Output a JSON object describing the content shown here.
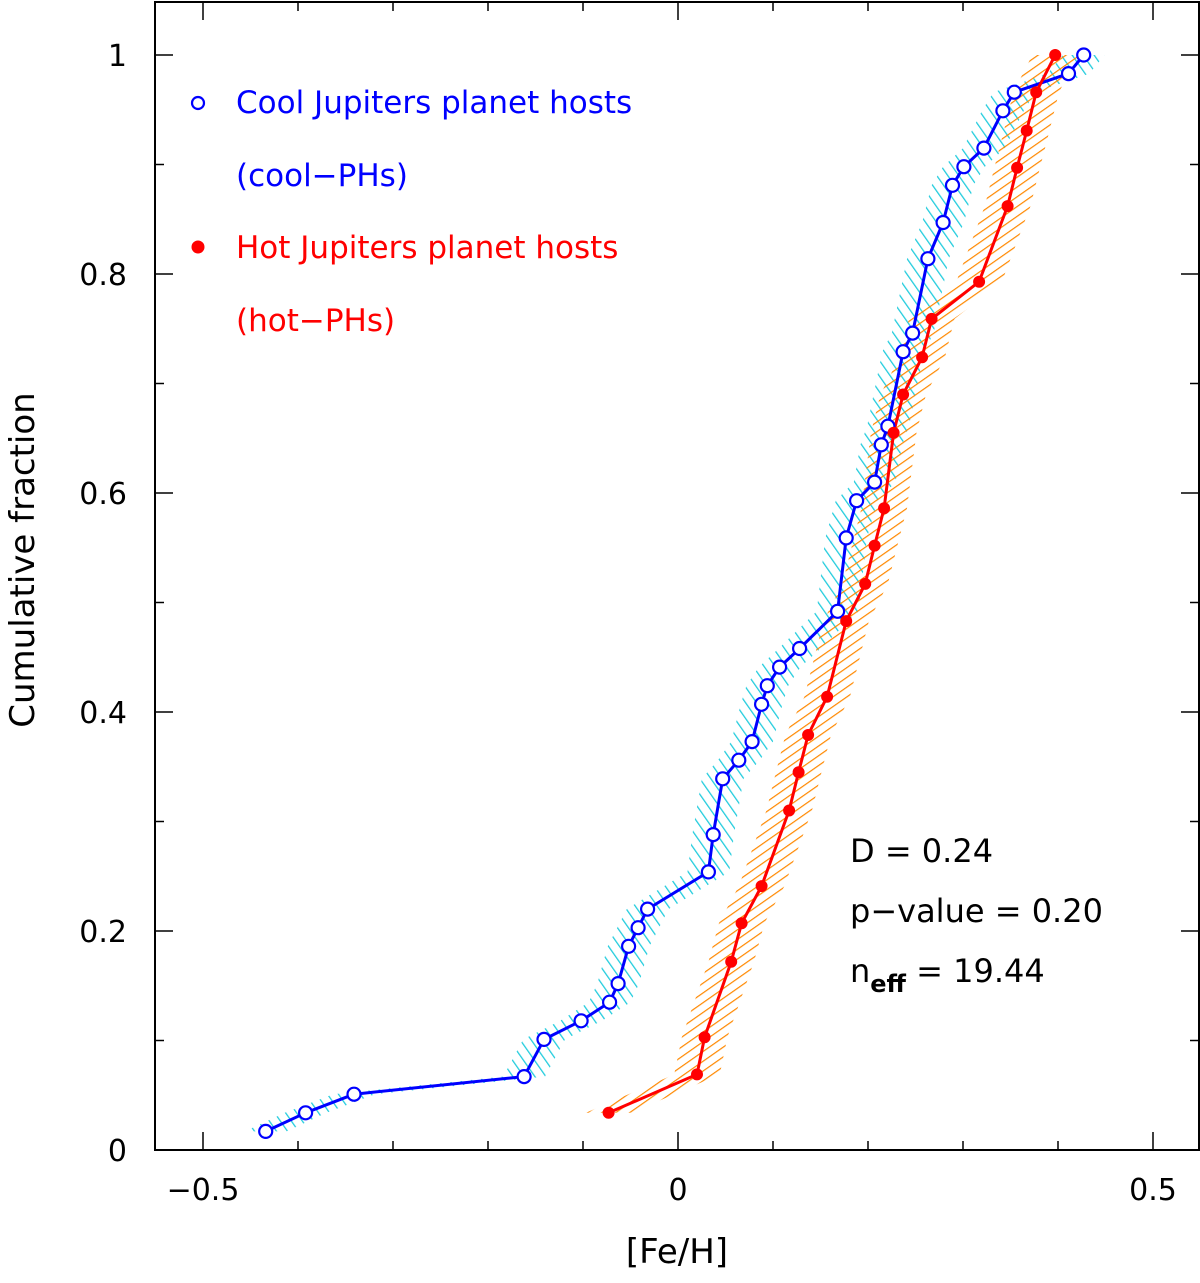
{
  "chart_data": {
    "type": "line",
    "title": "",
    "xlabel": "[Fe/H]",
    "ylabel": "Cumulative fraction",
    "xlim": [
      -0.55,
      0.55
    ],
    "ylim": [
      0,
      1.05
    ],
    "xticks": [
      -0.5,
      0,
      0.5
    ],
    "xtick_labels": [
      "−0.5",
      "0",
      "0.5"
    ],
    "yticks": [
      0,
      0.2,
      0.4,
      0.6,
      0.8,
      1
    ],
    "ytick_labels": [
      "0",
      "0.2",
      "0.4",
      "0.6",
      "0.8",
      "1"
    ],
    "grid": false,
    "legend_position": "top-left",
    "series": [
      {
        "name": "Cool Jupiters planet hosts",
        "name_sub": "(cool−PHs)",
        "color": "#0000ff",
        "band_color": "#22ccdd",
        "marker": "open-circle",
        "x": [
          -0.434,
          -0.392,
          -0.341,
          -0.162,
          -0.141,
          -0.102,
          -0.072,
          -0.063,
          -0.052,
          -0.042,
          -0.032,
          0.032,
          0.037,
          0.047,
          0.064,
          0.078,
          0.088,
          0.094,
          0.107,
          0.128,
          0.168,
          0.177,
          0.188,
          0.207,
          0.214,
          0.221,
          0.237,
          0.247,
          0.263,
          0.279,
          0.289,
          0.301,
          0.322,
          0.342,
          0.354,
          0.411,
          0.427
        ],
        "y": [
          0.017,
          0.034,
          0.051,
          0.067,
          0.101,
          0.118,
          0.135,
          0.152,
          0.186,
          0.203,
          0.22,
          0.254,
          0.288,
          0.339,
          0.356,
          0.373,
          0.407,
          0.424,
          0.441,
          0.458,
          0.492,
          0.559,
          0.593,
          0.61,
          0.644,
          0.661,
          0.729,
          0.746,
          0.814,
          0.847,
          0.881,
          0.898,
          0.915,
          0.949,
          0.966,
          0.983,
          1.0
        ]
      },
      {
        "name": "Hot Jupiters planet hosts",
        "name_sub": "(hot−PHs)",
        "color": "#ff0000",
        "band_color": "#ff8800",
        "marker": "filled-circle",
        "x": [
          -0.073,
          0.02,
          0.028,
          0.056,
          0.067,
          0.088,
          0.117,
          0.127,
          0.137,
          0.157,
          0.177,
          0.197,
          0.207,
          0.217,
          0.227,
          0.237,
          0.257,
          0.267,
          0.317,
          0.347,
          0.357,
          0.367,
          0.377,
          0.397
        ],
        "y": [
          0.034,
          0.069,
          0.103,
          0.172,
          0.207,
          0.241,
          0.31,
          0.345,
          0.379,
          0.414,
          0.483,
          0.517,
          0.552,
          0.586,
          0.655,
          0.69,
          0.724,
          0.759,
          0.793,
          0.862,
          0.897,
          0.931,
          0.966,
          1.0
        ]
      }
    ],
    "annotations": {
      "d_stat": "D = 0.24",
      "p_value": "p−value = 0.20",
      "n_eff_prefix": "n",
      "n_eff_sub": "eff",
      "n_eff_value": " = 19.44"
    }
  }
}
